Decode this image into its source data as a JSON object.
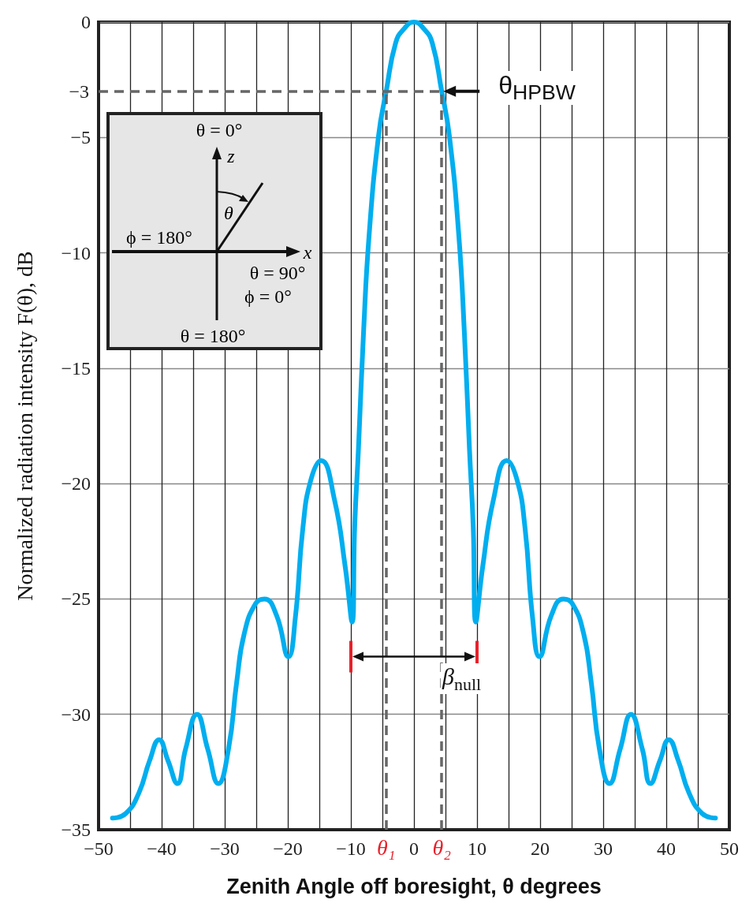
{
  "chart_data": {
    "type": "line",
    "xlabel": "Zenith Angle off boresight, θ degrees",
    "ylabel": "Normalized radiation intensity F(θ), dB",
    "x": [
      -47.8,
      -45.7,
      -43.6,
      -41.9,
      -40.4,
      -39.0,
      -37.5,
      -36.2,
      -34.4,
      -32.7,
      -31.0,
      -29.4,
      -28.1,
      -26.9,
      -25.1,
      -23.7,
      -21.8,
      -19.9,
      -18.8,
      -17.6,
      -16.3,
      -14.7,
      -12.6,
      -10.9,
      -9.8,
      -9.4,
      -8.8,
      -8.0,
      -7.1,
      -5.6,
      -4.4,
      -2.9,
      -1.6,
      0,
      1.6,
      2.9,
      4.4,
      5.6,
      7.1,
      8.0,
      8.8,
      9.4,
      9.8,
      10.9,
      12.6,
      14.7,
      16.3,
      17.6,
      18.8,
      19.9,
      21.8,
      23.7,
      25.1,
      26.9,
      28.1,
      29.4,
      31.0,
      32.7,
      34.4,
      36.2,
      37.5,
      39.0,
      40.4,
      41.9,
      43.6,
      45.7,
      47.8
    ],
    "series": [
      {
        "color": "#00aeef",
        "values": [
          -34.5,
          -34.3,
          -33.4,
          -32.0,
          -31.1,
          -32.0,
          -33.0,
          -31.5,
          -30.0,
          -31.5,
          -33.0,
          -31.5,
          -28.6,
          -26.5,
          -25.2,
          -25.0,
          -25.7,
          -27.5,
          -25.8,
          -21.9,
          -19.8,
          -19.0,
          -20.7,
          -23.6,
          -26.0,
          -21.9,
          -18.5,
          -13.5,
          -9.2,
          -4.9,
          -3.0,
          -0.9,
          -0.3,
          0,
          -0.3,
          -0.9,
          -3.0,
          -4.9,
          -9.2,
          -13.5,
          -18.5,
          -21.9,
          -26.0,
          -23.6,
          -20.7,
          -19.0,
          -19.8,
          -21.9,
          -25.8,
          -27.5,
          -25.7,
          -25.0,
          -25.2,
          -26.5,
          -28.6,
          -31.5,
          -33.0,
          -31.5,
          -30.0,
          -31.5,
          -33.0,
          -32.0,
          -31.1,
          -32.0,
          -33.4,
          -34.3,
          -34.5
        ]
      }
    ],
    "xlim": [
      -50,
      50
    ],
    "xticks": [
      -50,
      {
        "value": -45,
        "label": null
      },
      -40,
      {
        "value": -35,
        "label": null
      },
      -30,
      {
        "value": -25,
        "label": null
      },
      -20,
      {
        "value": -15,
        "label": null
      },
      -10,
      {
        "value": -5,
        "label": null
      },
      0,
      {
        "value": 5,
        "label": null
      },
      10,
      {
        "value": 15,
        "label": null
      },
      20,
      {
        "value": 25,
        "label": null
      },
      30,
      {
        "value": 35,
        "label": null
      },
      40,
      {
        "value": 45,
        "label": null
      },
      50
    ],
    "ylim": [
      -35,
      0
    ],
    "yticks": [
      -35,
      -30,
      -25,
      -20,
      -15,
      -10,
      -5,
      0
    ],
    "grid": true,
    "marker": "none",
    "line_style": "solid",
    "ref_lines": [
      {
        "axis": "y",
        "value": -3,
        "label": "−3",
        "color": "#666666",
        "line_style": "dashed"
      },
      {
        "axis": "x",
        "value": -4.4,
        "label": "θ₁",
        "color": "#666666",
        "line_style": "dashed"
      },
      {
        "axis": "x",
        "value": 4.4,
        "label": "θ₂",
        "color": "#666666",
        "line_style": "dashed"
      }
    ],
    "annotations": [
      {
        "text": "θ$_{HPBW}$",
        "x": 4.4,
        "y": -3
      },
      "β$_{null}$",
      "θ = 0°",
      "z",
      "θ",
      "ϕ = 180°",
      "x",
      "θ = 90°",
      "ϕ = 0°",
      "θ = 180°"
    ]
  }
}
